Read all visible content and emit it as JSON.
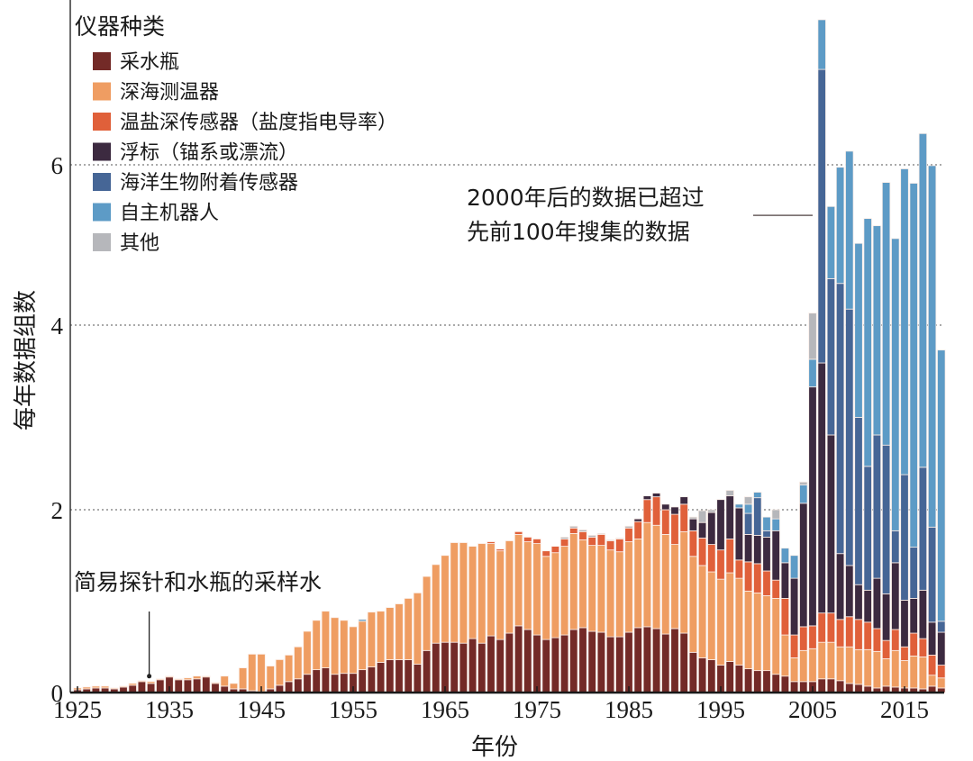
{
  "chart_data": {
    "type": "bar",
    "stacked": true,
    "title": "",
    "xlabel": "年份",
    "ylabel": "每年数据组数",
    "ylim": [
      0,
      8
    ],
    "yticks": [
      0,
      2,
      4,
      6
    ],
    "xticks": [
      1925,
      1935,
      1945,
      1955,
      1965,
      1975,
      1985,
      1995,
      2005,
      2015
    ],
    "grid": "dotted horizontal at 2, 4, 6",
    "legend": {
      "title": "仪器种类",
      "placement": "top-left"
    },
    "series": [
      {
        "name": "采水瓶",
        "color": "#732a27"
      },
      {
        "name": "深海测温器",
        "color": "#ef9d62"
      },
      {
        "name": "温盐深传感器（盐度指电导率）",
        "color": "#e0603a"
      },
      {
        "name": "浮标（锚系或漂流）",
        "color": "#3c2a40"
      },
      {
        "name": "海洋生物附着传感器",
        "color": "#466696"
      },
      {
        "name": "自主机器人",
        "color": "#5d9bc6"
      },
      {
        "name": "其他",
        "color": "#b6b7bb"
      }
    ],
    "x": [
      1925,
      1926,
      1927,
      1928,
      1929,
      1930,
      1931,
      1932,
      1933,
      1934,
      1935,
      1936,
      1937,
      1938,
      1939,
      1940,
      1941,
      1942,
      1943,
      1944,
      1945,
      1946,
      1947,
      1948,
      1949,
      1950,
      1951,
      1952,
      1953,
      1954,
      1955,
      1956,
      1957,
      1958,
      1959,
      1960,
      1961,
      1962,
      1963,
      1964,
      1965,
      1966,
      1967,
      1968,
      1969,
      1970,
      1971,
      1972,
      1973,
      1974,
      1975,
      1976,
      1977,
      1978,
      1979,
      1980,
      1981,
      1982,
      1983,
      1984,
      1985,
      1986,
      1987,
      1988,
      1989,
      1990,
      1991,
      1992,
      1993,
      1994,
      1995,
      1996,
      1997,
      1998,
      1999,
      2000,
      2001,
      2002,
      2003,
      2004,
      2005,
      2006,
      2007,
      2008,
      2009,
      2010,
      2011,
      2012,
      2013,
      2014,
      2015,
      2016,
      2017,
      2018,
      2019
    ],
    "values": [
      [
        0.03,
        0.02,
        0,
        0,
        0,
        0,
        0
      ],
      [
        0.04,
        0.02,
        0,
        0,
        0,
        0,
        0
      ],
      [
        0.05,
        0.02,
        0,
        0,
        0,
        0,
        0
      ],
      [
        0.05,
        0.02,
        0,
        0,
        0,
        0,
        0
      ],
      [
        0.04,
        0.01,
        0,
        0,
        0,
        0,
        0
      ],
      [
        0.06,
        0.01,
        0,
        0,
        0,
        0,
        0
      ],
      [
        0.08,
        0.02,
        0,
        0,
        0,
        0,
        0
      ],
      [
        0.12,
        0.01,
        0,
        0,
        0,
        0,
        0
      ],
      [
        0.1,
        0.02,
        0,
        0,
        0,
        0,
        0
      ],
      [
        0.14,
        0.01,
        0,
        0,
        0,
        0,
        0
      ],
      [
        0.17,
        0.01,
        0,
        0,
        0,
        0,
        0
      ],
      [
        0.14,
        0.01,
        0,
        0,
        0,
        0,
        0
      ],
      [
        0.14,
        0.02,
        0,
        0,
        0,
        0,
        0
      ],
      [
        0.15,
        0.03,
        0,
        0,
        0,
        0,
        0
      ],
      [
        0.17,
        0.01,
        0,
        0,
        0,
        0,
        0
      ],
      [
        0.1,
        0.01,
        0,
        0,
        0,
        0,
        0
      ],
      [
        0.07,
        0.11,
        0,
        0,
        0,
        0,
        0
      ],
      [
        0.04,
        0.06,
        0,
        0,
        0,
        0,
        0
      ],
      [
        0.04,
        0.23,
        0,
        0,
        0,
        0,
        0
      ],
      [
        0.02,
        0.4,
        0,
        0,
        0,
        0,
        0
      ],
      [
        0.01,
        0.41,
        0,
        0,
        0,
        0,
        0
      ],
      [
        0.04,
        0.25,
        0,
        0,
        0,
        0,
        0
      ],
      [
        0.08,
        0.28,
        0,
        0,
        0,
        0,
        0
      ],
      [
        0.12,
        0.29,
        0,
        0,
        0,
        0,
        0
      ],
      [
        0.15,
        0.35,
        0,
        0,
        0,
        0,
        0
      ],
      [
        0.2,
        0.47,
        0,
        0,
        0,
        0,
        0
      ],
      [
        0.25,
        0.54,
        0,
        0,
        0,
        0,
        0
      ],
      [
        0.27,
        0.62,
        0,
        0,
        0,
        0,
        0
      ],
      [
        0.2,
        0.62,
        0,
        0,
        0,
        0,
        0
      ],
      [
        0.21,
        0.58,
        0,
        0,
        0,
        0,
        0
      ],
      [
        0.21,
        0.51,
        0,
        0,
        0,
        0,
        0
      ],
      [
        0.25,
        0.53,
        0,
        0,
        0,
        0.02,
        0
      ],
      [
        0.28,
        0.6,
        0,
        0,
        0,
        0,
        0
      ],
      [
        0.33,
        0.56,
        0,
        0,
        0,
        0,
        0
      ],
      [
        0.36,
        0.57,
        0,
        0,
        0,
        0,
        0
      ],
      [
        0.36,
        0.61,
        0,
        0,
        0,
        0,
        0
      ],
      [
        0.36,
        0.67,
        0,
        0,
        0,
        0,
        0
      ],
      [
        0.31,
        0.78,
        0,
        0,
        0,
        0,
        0
      ],
      [
        0.46,
        0.81,
        0,
        0,
        0,
        0,
        0
      ],
      [
        0.54,
        0.86,
        0,
        0,
        0,
        0,
        0
      ],
      [
        0.55,
        0.95,
        0,
        0,
        0,
        0,
        0
      ],
      [
        0.55,
        1.09,
        0,
        0,
        0,
        0,
        0
      ],
      [
        0.54,
        1.1,
        0,
        0,
        0,
        0,
        0
      ],
      [
        0.59,
        1.01,
        0,
        0,
        0,
        0,
        0
      ],
      [
        0.54,
        1.09,
        0,
        0,
        0,
        0,
        0
      ],
      [
        0.62,
        1.01,
        0.02,
        0,
        0,
        0,
        0
      ],
      [
        0.58,
        0.97,
        0.02,
        0,
        0,
        0,
        0
      ],
      [
        0.65,
        1.01,
        0,
        0,
        0,
        0,
        0
      ],
      [
        0.73,
        1.0,
        0.03,
        0,
        0,
        0,
        0
      ],
      [
        0.69,
        0.96,
        0.05,
        0,
        0,
        0,
        0
      ],
      [
        0.63,
        1.0,
        0.05,
        0,
        0,
        0,
        0
      ],
      [
        0.58,
        0.91,
        0.06,
        0,
        0,
        0,
        0
      ],
      [
        0.6,
        0.93,
        0.07,
        0,
        0,
        0,
        0
      ],
      [
        0.63,
        0.97,
        0.08,
        0,
        0,
        0,
        0.02
      ],
      [
        0.69,
        1.05,
        0.06,
        0,
        0,
        0,
        0.02
      ],
      [
        0.71,
        0.96,
        0.09,
        0,
        0,
        0,
        0.02
      ],
      [
        0.67,
        0.94,
        0.09,
        0,
        0,
        0,
        0.02
      ],
      [
        0.66,
        0.95,
        0.12,
        0,
        0,
        0,
        0.01
      ],
      [
        0.61,
        0.95,
        0.1,
        0,
        0,
        0,
        0.01
      ],
      [
        0.61,
        0.93,
        0.14,
        0,
        0,
        0,
        0.01
      ],
      [
        0.66,
        0.99,
        0.15,
        0,
        0,
        0,
        0.02
      ],
      [
        0.71,
        0.97,
        0.19,
        0.03,
        0,
        0,
        0
      ],
      [
        0.72,
        1.14,
        0.25,
        0.04,
        0,
        0,
        0
      ],
      [
        0.7,
        1.13,
        0.31,
        0.04,
        0,
        0,
        0
      ],
      [
        0.64,
        1.09,
        0.27,
        0.06,
        0,
        0,
        0
      ],
      [
        0.7,
        0.92,
        0.33,
        0.08,
        0,
        0,
        0
      ],
      [
        0.65,
        1.11,
        0.3,
        0.08,
        0,
        0,
        0
      ],
      [
        0.44,
        1.05,
        0.28,
        0.13,
        0,
        0,
        0.02
      ],
      [
        0.38,
        1.01,
        0.3,
        0.17,
        0,
        0,
        0.13
      ],
      [
        0.36,
        0.96,
        0.3,
        0.35,
        0,
        0,
        0.03
      ],
      [
        0.3,
        0.94,
        0.32,
        0.55,
        0,
        0,
        0
      ],
      [
        0.34,
        0.97,
        0.37,
        0.47,
        0,
        0,
        0.06
      ],
      [
        0.3,
        0.95,
        0.2,
        0.57,
        0,
        0.04,
        0
      ],
      [
        0.26,
        0.85,
        0.32,
        0.3,
        0.23,
        0.1,
        0.08
      ],
      [
        0.24,
        0.85,
        0.32,
        0.31,
        0.41,
        0.06,
        0
      ],
      [
        0.24,
        0.82,
        0.27,
        0.37,
        0.07,
        0.15,
        0
      ],
      [
        0.2,
        0.83,
        0.2,
        0.54,
        0,
        0.13,
        0.1
      ],
      [
        0.18,
        0.45,
        0.4,
        0.39,
        0,
        0.16,
        0
      ],
      [
        0.12,
        0.26,
        0.25,
        0.62,
        0,
        0.25,
        0
      ],
      [
        0.12,
        0.34,
        0.26,
        1.35,
        0,
        0.2,
        0.03
      ],
      [
        0.12,
        0.36,
        0.25,
        2.6,
        0,
        0.3,
        0.52
      ],
      [
        0.15,
        0.4,
        0.32,
        2.72,
        3.6,
        0.62,
        0
      ],
      [
        0.15,
        0.4,
        0.32,
        1.94,
        1.77,
        0.9,
        0
      ],
      [
        0.13,
        0.37,
        0.3,
        0.72,
        3.0,
        1.45,
        0
      ],
      [
        0.1,
        0.4,
        0.33,
        0.56,
        2.81,
        1.97,
        0
      ],
      [
        0.09,
        0.38,
        0.33,
        0.38,
        1.82,
        2.02,
        0
      ],
      [
        0.07,
        0.4,
        0.3,
        0.35,
        1.35,
        2.86,
        0
      ],
      [
        0.05,
        0.4,
        0.25,
        0.55,
        1.56,
        2.43,
        0
      ],
      [
        0.07,
        0.3,
        0.2,
        0.51,
        1.62,
        3.08,
        0
      ],
      [
        0.06,
        0.4,
        0.23,
        0.73,
        0.35,
        3.31,
        0
      ],
      [
        0.05,
        0.3,
        0.15,
        0.51,
        1.37,
        3.57,
        0
      ],
      [
        0.05,
        0.35,
        0.25,
        0.38,
        0.56,
        4.18,
        0
      ],
      [
        0.04,
        0.35,
        0.2,
        0.53,
        1.34,
        3.93,
        0
      ],
      [
        0.07,
        0.12,
        0.22,
        0.36,
        1.04,
        4.18,
        0
      ],
      [
        0.05,
        0.11,
        0.14,
        0.36,
        0.12,
        2.95,
        0
      ]
    ],
    "annotations": [
      {
        "text": "简易探针和水瓶的采样水",
        "target_x": 1933,
        "target_y": 0.13
      },
      {
        "text_lines": [
          "2000年后的数据已超过",
          "先前100年搜集的数据"
        ],
        "target_x": 2005,
        "target_y": 5.37
      }
    ]
  }
}
